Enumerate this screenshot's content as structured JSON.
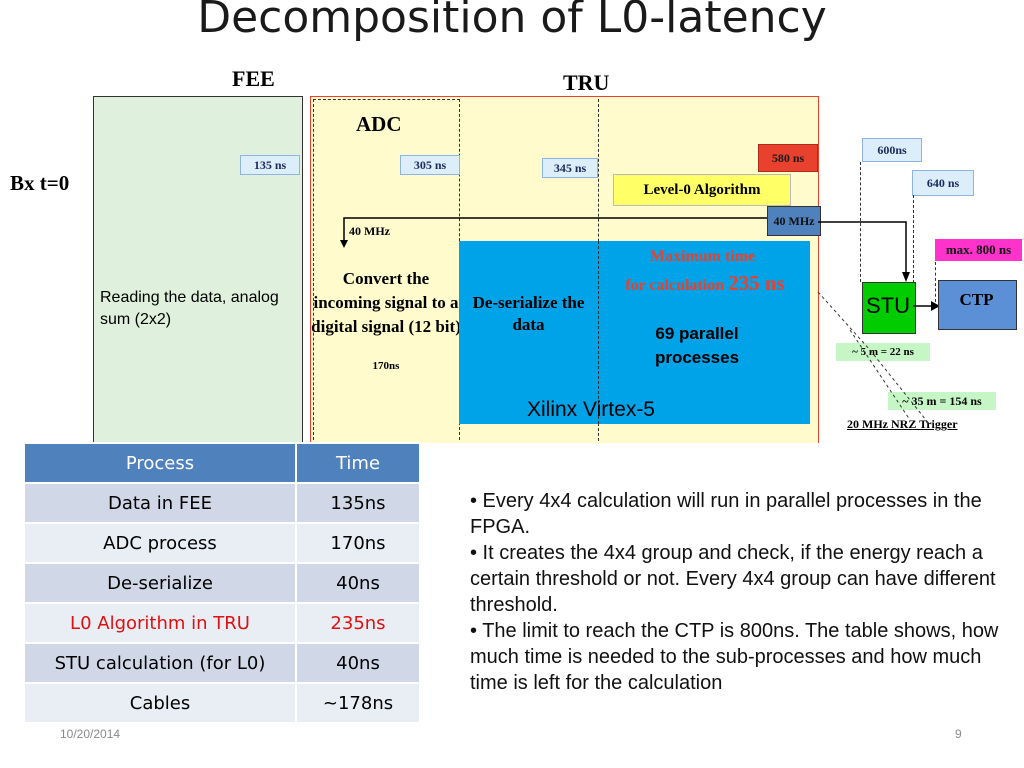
{
  "title": "Decomposition of L0-latency",
  "labels": {
    "fee": "FEE",
    "tru": "TRU",
    "adc": "ADC",
    "bx": "Bx t=0",
    "reading": "Reading the data, analog sum (2x2)",
    "convert": "Convert the incoming signal to a digital signal (12 bit)",
    "convert_time": "170ns",
    "mhz_left": "40 MHz",
    "mhz_right": "40 MHz",
    "deserialize": "De-serialize the data",
    "max_time_line1": "Maximum time",
    "max_time_line2": "for calculation",
    "max_time_value": "235 ns",
    "parallel": "69 parallel processes",
    "xilinx": "Xilinx Virtex-5",
    "level0": "Level-0 Algorithm",
    "stu": "STU",
    "ctp": "CTP",
    "max800": "max. 800 ns",
    "dist5": "~ 5 m = 22 ns",
    "dist35": "~ 35 m = 154 ns",
    "nrz": "20 MHz NRZ Trigger"
  },
  "time_tags": {
    "t135": "135 ns",
    "t305": "305 ns",
    "t345": "345 ns",
    "t580": "580 ns",
    "t600": "600ns",
    "t640": "640 ns"
  },
  "table": {
    "headers": [
      "Process",
      "Time"
    ],
    "rows": [
      {
        "process": "Data in FEE",
        "time": "135ns"
      },
      {
        "process": "ADC process",
        "time": "170ns"
      },
      {
        "process": "De-serialize",
        "time": "40ns"
      },
      {
        "process": "L0 Algorithm in TRU",
        "time": "235ns"
      },
      {
        "process": "STU calculation (for L0)",
        "time": "40ns"
      },
      {
        "process": "Cables",
        "time": "~178ns"
      }
    ]
  },
  "bullets": [
    "• Every 4x4 calculation will run in parallel processes in the FPGA.",
    "• It creates the 4x4 group and check, if the energy reach a certain threshold or not. Every 4x4 group can have different threshold.",
    "• The limit to reach the CTP is 800ns. The table shows, how much time is needed to the sub-processes and how much time is left for the calculation"
  ],
  "footer": {
    "date": "10/20/2014",
    "page": "9"
  },
  "colors": {
    "fee_box": "#dff0dc",
    "tru_box": "#fffbcc",
    "fpga_box": "#00a2e8",
    "stu_box": "#00cc00",
    "ctp_box": "#5b8fd6",
    "level0_box": "#ffff66",
    "max_time_red": "#e8412d",
    "highlight_row_text": "#e01010",
    "table_header": "#4f81bd"
  }
}
